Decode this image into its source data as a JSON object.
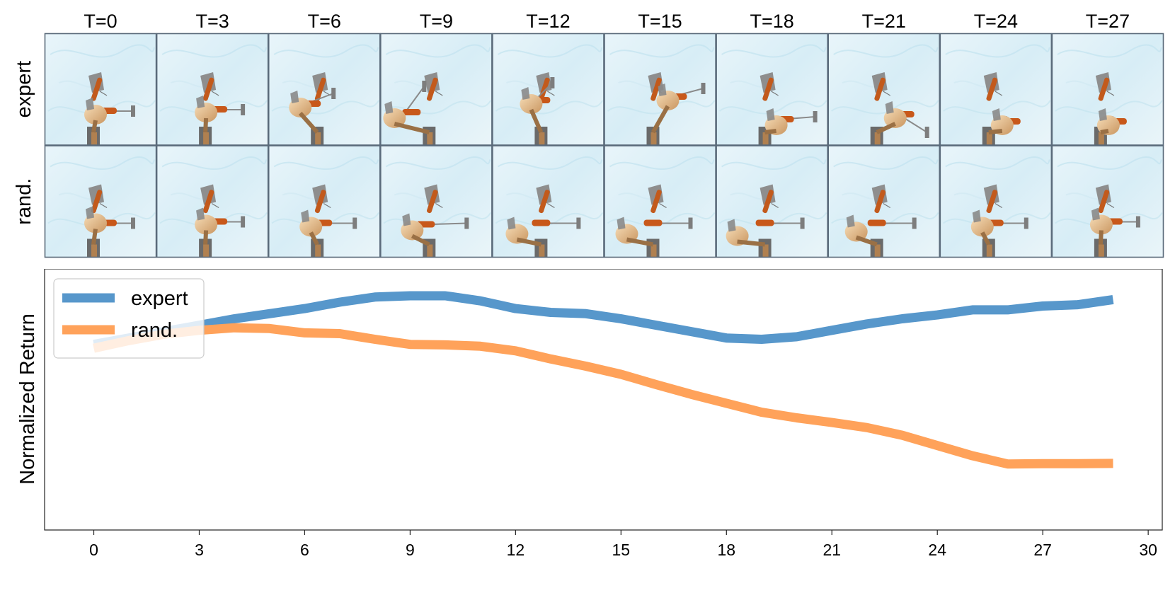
{
  "filmstrip": {
    "time_labels": [
      "T=0",
      "T=3",
      "T=6",
      "T=9",
      "T=12",
      "T=15",
      "T=18",
      "T=21",
      "T=24",
      "T=27"
    ],
    "rows": [
      "expert",
      "rand."
    ]
  },
  "chart_data": {
    "type": "line",
    "title": "",
    "xlabel": "",
    "ylabel": "Normalized Return",
    "xlim": [
      -1.4,
      30.4
    ],
    "ylim": [
      -0.02,
      1.0
    ],
    "xticks": [
      0,
      3,
      6,
      9,
      12,
      15,
      18,
      21,
      24,
      27,
      30
    ],
    "y_ticklabels_visible": false,
    "legend": "upper-left",
    "series": [
      {
        "name": "expert",
        "color": "#5797CB",
        "x": [
          0,
          1,
          2,
          3,
          4,
          5,
          6,
          7,
          8,
          9,
          10,
          11,
          12,
          13,
          14,
          15,
          16,
          17,
          18,
          19,
          20,
          21,
          22,
          23,
          24,
          25,
          26,
          27,
          28,
          29
        ],
        "y": [
          0.705,
          0.73,
          0.755,
          0.78,
          0.805,
          0.825,
          0.845,
          0.87,
          0.89,
          0.895,
          0.895,
          0.875,
          0.845,
          0.83,
          0.825,
          0.805,
          0.78,
          0.755,
          0.73,
          0.725,
          0.735,
          0.76,
          0.785,
          0.805,
          0.82,
          0.84,
          0.84,
          0.855,
          0.86,
          0.88
        ]
      },
      {
        "name": "rand.",
        "color": "#FFA25A",
        "x": [
          0,
          1,
          2,
          3,
          4,
          5,
          6,
          7,
          8,
          9,
          10,
          11,
          12,
          13,
          14,
          15,
          16,
          17,
          18,
          19,
          20,
          21,
          22,
          23,
          24,
          25,
          26,
          27,
          28,
          29
        ],
        "y": [
          0.69,
          0.72,
          0.745,
          0.76,
          0.77,
          0.767,
          0.75,
          0.747,
          0.725,
          0.705,
          0.703,
          0.698,
          0.68,
          0.648,
          0.62,
          0.588,
          0.548,
          0.51,
          0.475,
          0.44,
          0.418,
          0.4,
          0.38,
          0.35,
          0.31,
          0.27,
          0.238,
          0.239,
          0.239,
          0.24
        ]
      }
    ]
  }
}
